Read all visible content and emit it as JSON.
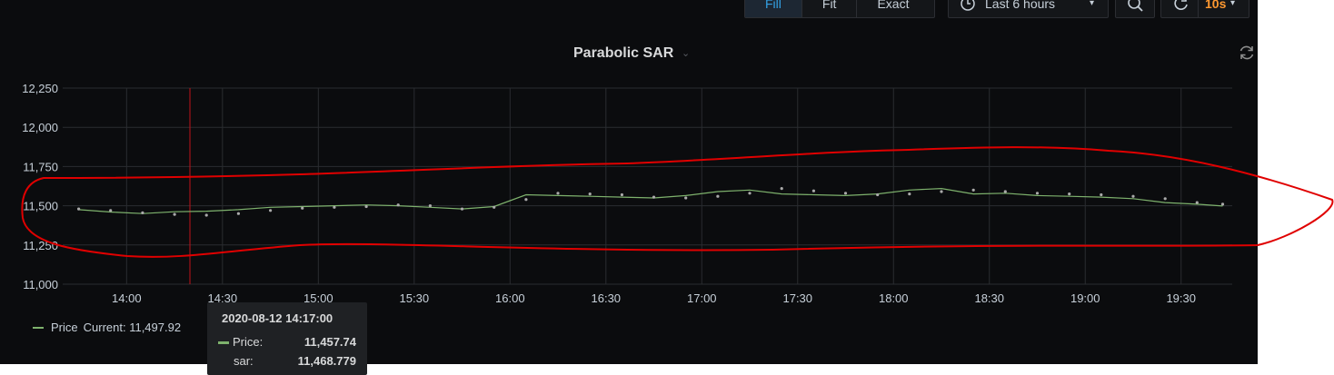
{
  "toolbar": {
    "zoom_buttons": [
      "Fill",
      "Fit",
      "Exact"
    ],
    "active_zoom": "Fill",
    "time_range": "Last 6 hours",
    "refresh_interval": "10s"
  },
  "panel": {
    "title": "Parabolic SAR"
  },
  "legend": {
    "series_name": "Price",
    "current_text": "Current: 11,497.92"
  },
  "tooltip": {
    "time": "2020-08-12 14:17:00",
    "price_label": "Price:",
    "price_value": "11,457.74",
    "sar_label": "sar:",
    "sar_value": "11,468.779"
  },
  "colors": {
    "price_line": "#7eb26d",
    "sar_dots": "#aaaaaa",
    "annotation": "#e00000",
    "crosshair": "#c0121a",
    "active_button": "#33a2e5",
    "refresh_text": "#ff9830"
  },
  "chart_data": {
    "type": "line",
    "title": "Parabolic SAR",
    "ylim": [
      11000,
      12250
    ],
    "yticks": [
      11000,
      11250,
      11500,
      11750,
      12000,
      12250
    ],
    "ytick_labels": [
      "11,000",
      "11,250",
      "11,500",
      "11,750",
      "12,000",
      "12,250"
    ],
    "xticks": [
      "14:00",
      "14:30",
      "15:00",
      "15:30",
      "16:00",
      "16:30",
      "17:00",
      "17:30",
      "18:00",
      "18:30",
      "19:00",
      "19:30"
    ],
    "grid": true,
    "legend_placement": "bottom-left",
    "x": [
      "13:45",
      "13:55",
      "14:05",
      "14:15",
      "14:25",
      "14:35",
      "14:45",
      "14:55",
      "15:05",
      "15:15",
      "15:25",
      "15:35",
      "15:45",
      "15:55",
      "16:05",
      "16:15",
      "16:25",
      "16:35",
      "16:45",
      "16:55",
      "17:05",
      "17:15",
      "17:25",
      "17:35",
      "17:45",
      "17:55",
      "18:05",
      "18:15",
      "18:25",
      "18:35",
      "18:45",
      "18:55",
      "19:05",
      "19:15",
      "19:25",
      "19:35",
      "19:43"
    ],
    "series": [
      {
        "name": "Price",
        "style": "line",
        "values": [
          11475,
          11460,
          11450,
          11462,
          11465,
          11475,
          11490,
          11495,
          11500,
          11505,
          11500,
          11490,
          11480,
          11495,
          11570,
          11565,
          11560,
          11555,
          11550,
          11565,
          11590,
          11600,
          11575,
          11570,
          11565,
          11575,
          11600,
          11610,
          11575,
          11580,
          11565,
          11560,
          11555,
          11545,
          11520,
          11510,
          11498
        ]
      },
      {
        "name": "sar",
        "style": "dots",
        "values": [
          11480,
          11470,
          11455,
          11445,
          11440,
          11450,
          11470,
          11485,
          11490,
          11495,
          11505,
          11500,
          11480,
          11490,
          11540,
          11580,
          11575,
          11570,
          11555,
          11550,
          11560,
          11580,
          11610,
          11595,
          11580,
          11570,
          11575,
          11590,
          11600,
          11590,
          11580,
          11575,
          11570,
          11560,
          11545,
          11520,
          11510
        ]
      }
    ]
  }
}
